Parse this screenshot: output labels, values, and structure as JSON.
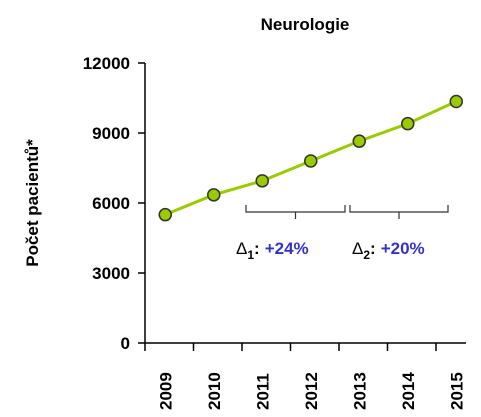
{
  "chart_data": {
    "type": "line",
    "title": "Neurologie",
    "y_label": "Počet pacientů*",
    "categories": [
      "2009",
      "2010",
      "2011",
      "2012",
      "2013",
      "2014",
      "2015"
    ],
    "series": [
      {
        "name": "Počet pacientů",
        "color": "#99cc00",
        "values": [
          5500,
          6350,
          6950,
          7800,
          8650,
          9400,
          10350
        ]
      }
    ],
    "ylim": [
      0,
      12000
    ],
    "yticks": [
      0,
      3000,
      6000,
      9000,
      12000
    ],
    "grid": false,
    "annotations": [
      {
        "symbol": "Δ",
        "index": "1",
        "separator": ":",
        "change": "+24%"
      },
      {
        "symbol": "Δ",
        "index": "2",
        "separator": ":",
        "change": "+20%"
      }
    ]
  }
}
